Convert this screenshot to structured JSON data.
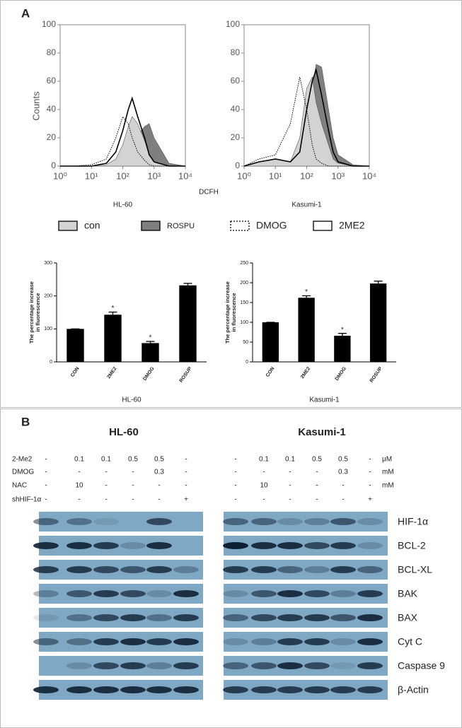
{
  "panel_labels": {
    "a": "A",
    "b": "B"
  },
  "chart_data": [
    {
      "type": "histogram-overlay",
      "ylabel": "Counts",
      "xlabel": "DCFH",
      "caption": "HL-60",
      "log_x": true,
      "xlim": [
        1,
        10000
      ],
      "xticks": [
        {
          "value": 1,
          "label": "10⁰"
        },
        {
          "value": 10,
          "label": "10¹"
        },
        {
          "value": 100,
          "label": "10²"
        },
        {
          "value": 1000,
          "label": "10³"
        },
        {
          "value": 10000,
          "label": "10⁴"
        }
      ],
      "ylim": [
        0,
        100
      ],
      "yticks": [
        0,
        20,
        40,
        60,
        80,
        100
      ],
      "x": [
        1,
        3,
        10,
        30,
        60,
        100,
        150,
        200,
        300,
        500,
        700,
        1000,
        3000,
        10000
      ],
      "series": [
        {
          "name": "ROSPU",
          "color": "#7f7f7f",
          "filled": true,
          "line_style": "solid",
          "values": [
            0,
            0,
            0,
            0,
            1,
            3,
            8,
            15,
            22,
            28,
            30,
            20,
            2,
            0
          ]
        },
        {
          "name": "con",
          "color": "#d3d3d3",
          "filled": true,
          "line_style": "solid",
          "values": [
            0,
            0,
            0,
            1,
            5,
            15,
            28,
            35,
            30,
            18,
            8,
            3,
            0,
            0
          ]
        },
        {
          "name": "DMOG",
          "color": "#000000",
          "filled": false,
          "line_style": "dotted",
          "values": [
            0,
            0,
            1,
            5,
            20,
            35,
            30,
            20,
            10,
            4,
            1,
            0,
            0,
            0
          ]
        },
        {
          "name": "2ME2",
          "color": "#000000",
          "filled": false,
          "line_style": "solid",
          "values": [
            0,
            0,
            0,
            2,
            10,
            25,
            40,
            48,
            35,
            20,
            8,
            3,
            0,
            0
          ]
        }
      ]
    },
    {
      "type": "histogram-overlay",
      "caption": "Kasumi-1",
      "log_x": true,
      "xlim": [
        1,
        10000
      ],
      "xticks": [
        {
          "value": 1,
          "label": "10⁰"
        },
        {
          "value": 10,
          "label": "10¹"
        },
        {
          "value": 100,
          "label": "10²"
        },
        {
          "value": 1000,
          "label": "10³"
        },
        {
          "value": 10000,
          "label": "10⁴"
        }
      ],
      "ylim": [
        0,
        100
      ],
      "yticks": [
        0,
        20,
        40,
        60,
        80,
        100
      ],
      "x": [
        1,
        3,
        10,
        30,
        60,
        100,
        150,
        200,
        300,
        500,
        700,
        1000,
        3000,
        10000
      ],
      "series": [
        {
          "color": "#7f7f7f",
          "filled": true,
          "line_style": "solid",
          "values": [
            0,
            2,
            3,
            2,
            5,
            30,
            55,
            72,
            70,
            40,
            20,
            8,
            1,
            0
          ]
        },
        {
          "color": "#d3d3d3",
          "filled": true,
          "line_style": "solid",
          "values": [
            0,
            3,
            5,
            3,
            20,
            55,
            63,
            45,
            30,
            15,
            5,
            2,
            0,
            0
          ]
        },
        {
          "color": "#000000",
          "filled": false,
          "line_style": "dotted",
          "values": [
            0,
            5,
            8,
            30,
            63,
            40,
            15,
            5,
            2,
            0,
            0,
            0,
            0,
            0
          ]
        },
        {
          "color": "#000000",
          "filled": false,
          "line_style": "solid",
          "values": [
            0,
            3,
            5,
            3,
            10,
            40,
            60,
            68,
            50,
            25,
            10,
            3,
            0,
            0
          ]
        }
      ]
    },
    {
      "type": "bar",
      "ylabel": [
        "The percentage increase",
        "in fluorescence"
      ],
      "caption": "HL-60",
      "color": "#000000",
      "categories": [
        "CON",
        "2ME2",
        "DMOG",
        "ROSUP"
      ],
      "values": [
        100,
        143,
        57,
        232
      ],
      "errors": [
        0,
        8,
        5,
        6
      ],
      "significance": [
        null,
        "*",
        "*",
        null
      ],
      "ylim": [
        0,
        300
      ],
      "yticks": [
        0,
        100,
        200,
        300
      ]
    },
    {
      "type": "bar",
      "ylabel": [
        "The percentage increase",
        "in fluorescence"
      ],
      "caption": "Kasumi-1",
      "color": "#000000",
      "categories": [
        "CON",
        "2ME2",
        "DMOG",
        "ROSUP"
      ],
      "values": [
        100,
        162,
        66,
        198
      ],
      "errors": [
        0,
        5,
        6,
        6
      ],
      "significance": [
        null,
        "*",
        "*",
        null
      ],
      "ylim": [
        0,
        250
      ],
      "yticks": [
        0,
        50,
        100,
        150,
        200,
        250
      ]
    }
  ],
  "panel_b": {
    "groups": [
      "HL-60",
      "Kasumi-1"
    ],
    "treatments": [
      {
        "name": "2-Me2",
        "lanes": [
          "-",
          "0.1",
          "0.1",
          "0.5",
          "0.5",
          "-"
        ],
        "unit": "μM"
      },
      {
        "name": "DMOG",
        "lanes": [
          "-",
          "-",
          "-",
          "-",
          "0.3",
          "-"
        ],
        "unit": "mM"
      },
      {
        "name": "NAC",
        "lanes": [
          "-",
          "10",
          "-",
          "-",
          "-",
          "-"
        ],
        "unit": "mM"
      },
      {
        "name": "shHIF-1α",
        "lanes": [
          "-",
          "-",
          "-",
          "-",
          "-",
          "+"
        ]
      }
    ],
    "proteins": [
      "HIF-1α",
      "BCL-2",
      "BCL-XL",
      "BAK",
      "BAX",
      "Cyt C",
      "Caspase 9",
      "β-Actin"
    ]
  }
}
